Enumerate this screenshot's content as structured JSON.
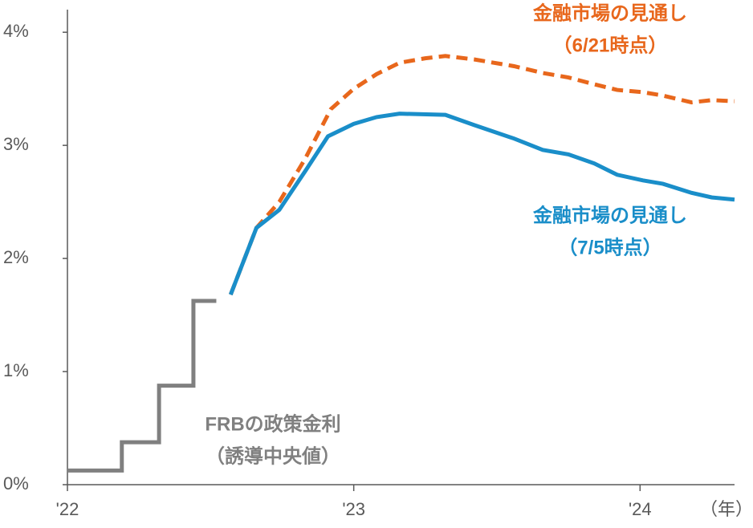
{
  "chart_data": {
    "type": "line",
    "x_unit": "（年）",
    "xlim": [
      2022,
      2024.33
    ],
    "xticks": [
      {
        "value": 2022,
        "label": "'22"
      },
      {
        "value": 2023,
        "label": "'23"
      },
      {
        "value": 2024,
        "label": "'24"
      }
    ],
    "ylim": [
      0,
      4.2
    ],
    "yticks": [
      {
        "value": 0,
        "label": "0%"
      },
      {
        "value": 1,
        "label": "1%"
      },
      {
        "value": 2,
        "label": "2%"
      },
      {
        "value": 3,
        "label": "3%"
      },
      {
        "value": 4,
        "label": "4%"
      }
    ],
    "grid": false,
    "series": [
      {
        "label": [
          "FRBの政策金利",
          "（誘導中央値）"
        ],
        "color": "#808080",
        "dashed": false,
        "x": [
          2022.0,
          2022.19,
          2022.19,
          2022.32,
          2022.32,
          2022.44,
          2022.44,
          2022.52
        ],
        "values": [
          0.125,
          0.125,
          0.375,
          0.375,
          0.875,
          0.875,
          1.625,
          1.625
        ]
      },
      {
        "label": [
          "金融市場の見通し",
          "（6/21時点）"
        ],
        "color": "#e8671c",
        "dashed": true,
        "x": [
          2022.57,
          2022.66,
          2022.74,
          2022.83,
          2022.92,
          2023.0,
          2023.08,
          2023.16,
          2023.25,
          2023.32,
          2023.42,
          2023.56,
          2023.66,
          2023.75,
          2023.84,
          2023.92,
          2024.01,
          2024.08,
          2024.18,
          2024.25,
          2024.33
        ],
        "values": [
          1.68,
          2.27,
          2.5,
          2.88,
          3.32,
          3.5,
          3.63,
          3.73,
          3.77,
          3.79,
          3.76,
          3.7,
          3.64,
          3.6,
          3.54,
          3.49,
          3.47,
          3.44,
          3.38,
          3.4,
          3.39
        ]
      },
      {
        "label": [
          "金融市場の見通し",
          "（7/5時点）"
        ],
        "color": "#1a8ec9",
        "dashed": false,
        "x": [
          2022.57,
          2022.66,
          2022.74,
          2022.83,
          2022.91,
          2023.0,
          2023.08,
          2023.16,
          2023.32,
          2023.42,
          2023.56,
          2023.66,
          2023.75,
          2023.84,
          2023.92,
          2024.01,
          2024.08,
          2024.18,
          2024.25,
          2024.33
        ],
        "values": [
          1.68,
          2.27,
          2.43,
          2.77,
          3.08,
          3.19,
          3.25,
          3.28,
          3.27,
          3.18,
          3.06,
          2.96,
          2.92,
          2.84,
          2.74,
          2.69,
          2.66,
          2.58,
          2.54,
          2.52
        ]
      }
    ]
  }
}
